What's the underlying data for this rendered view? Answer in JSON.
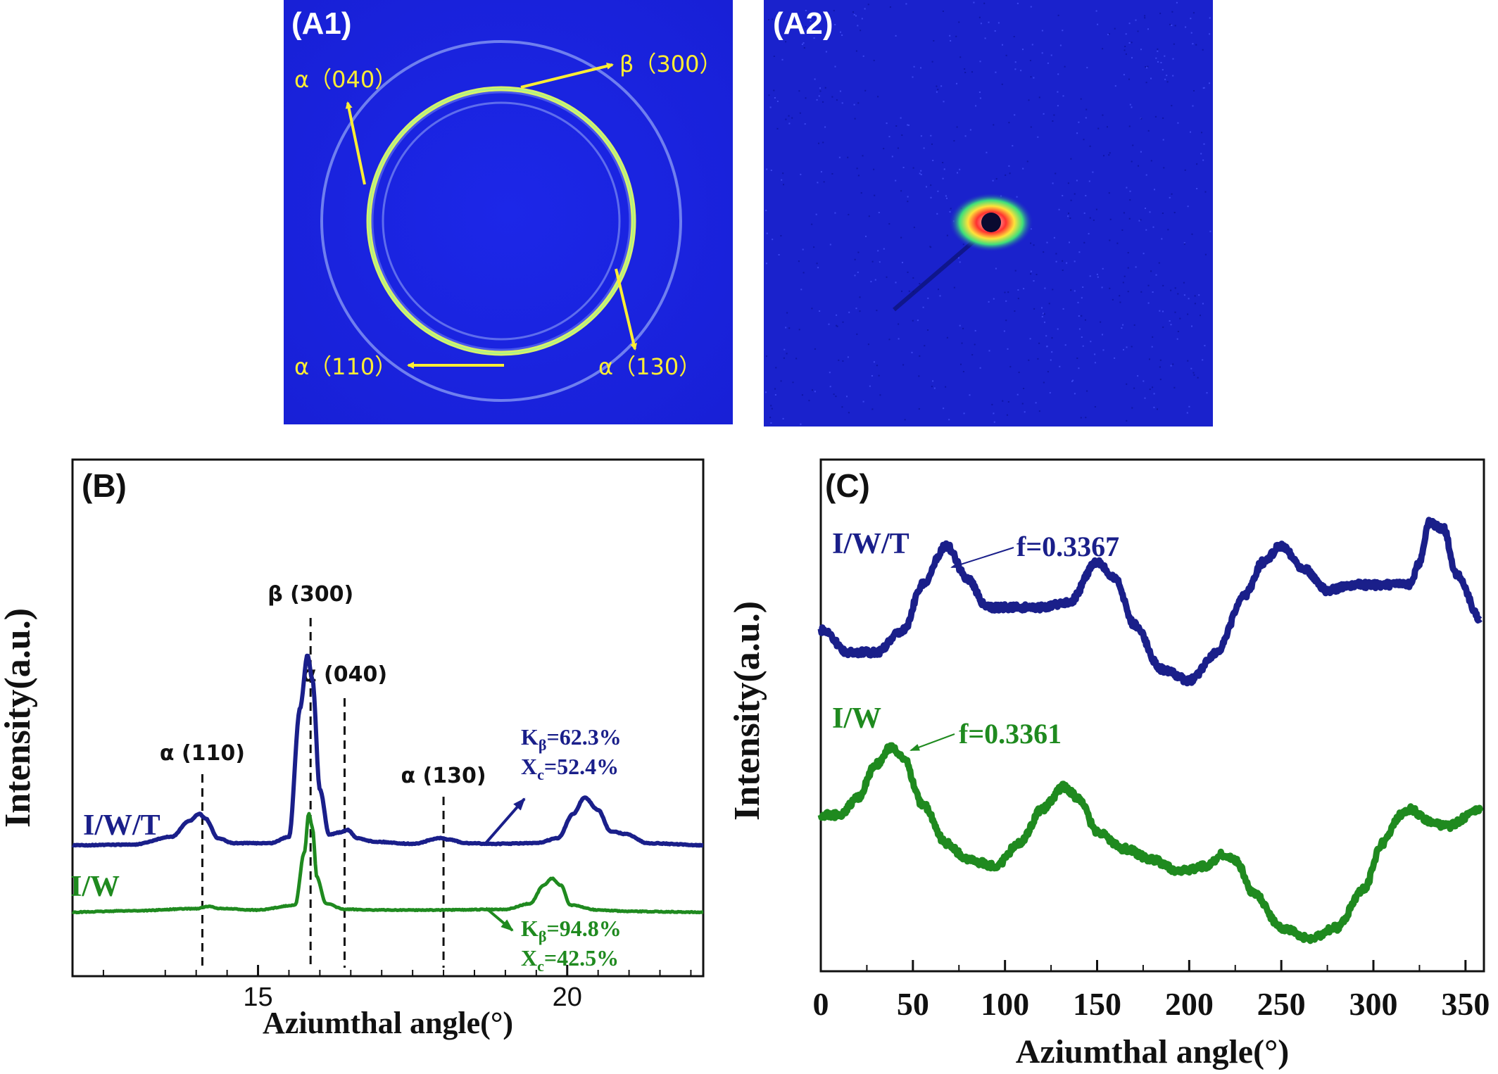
{
  "panels": {
    "a1": {
      "label": "(A1)",
      "annotations": [
        "α（040）",
        "β（300）",
        "α（110）",
        "α（130）"
      ]
    },
    "a2": {
      "label": "(A2)"
    },
    "b": {
      "label": "(B)"
    },
    "c": {
      "label": "(C)"
    }
  },
  "colors": {
    "iwt": "#1a1f8a",
    "iw": "#1f8a1f",
    "pattern_bg": "#1a23e6",
    "annotation": "#ffee33"
  },
  "chart_data": [
    {
      "id": "B",
      "type": "line",
      "xlabel": "Aziumthal angle(°)",
      "ylabel": "Intensity(a.u.)",
      "xlim": [
        12,
        22.2
      ],
      "xticks": [
        15,
        20
      ],
      "xtick_labels": [
        "15",
        "20"
      ],
      "xminor": [
        12.5,
        13.5,
        14,
        14.5,
        15.5,
        16,
        16.5,
        17,
        17.5,
        18,
        18.5,
        19,
        19.5,
        20.5,
        21,
        21.5,
        22
      ],
      "grid": false,
      "legend": "none",
      "series": [
        {
          "name": "I/W/T",
          "x": [
            12,
            13,
            13.6,
            13.9,
            14.05,
            14.15,
            14.35,
            14.6,
            15.2,
            15.5,
            15.68,
            15.8,
            15.88,
            16.0,
            16.15,
            16.3,
            16.45,
            16.6,
            16.9,
            17.5,
            17.95,
            18.1,
            18.35,
            18.8,
            19.5,
            19.85,
            20.1,
            20.28,
            20.5,
            20.7,
            20.95,
            21.3,
            22.2
          ],
          "y": [
            0,
            0.01,
            0.12,
            0.35,
            0.45,
            0.38,
            0.1,
            0.03,
            0.03,
            0.12,
            1.95,
            2.7,
            2.35,
            0.8,
            0.15,
            0.18,
            0.22,
            0.1,
            0.05,
            0.02,
            0.1,
            0.08,
            0.03,
            0.02,
            0.03,
            0.1,
            0.45,
            0.68,
            0.5,
            0.2,
            0.16,
            0.03,
            0
          ]
        },
        {
          "name": "I/W",
          "x": [
            12,
            13,
            14,
            14.2,
            14.4,
            15,
            15.6,
            15.75,
            15.82,
            15.88,
            15.95,
            16.1,
            16.4,
            17,
            18,
            19,
            19.4,
            19.62,
            19.75,
            19.9,
            20.05,
            20.5,
            21,
            22.2
          ],
          "y": [
            0,
            0.02,
            0.05,
            0.08,
            0.05,
            0.03,
            0.1,
            0.85,
            1.4,
            1.2,
            0.5,
            0.12,
            0.04,
            0.03,
            0.03,
            0.04,
            0.12,
            0.38,
            0.48,
            0.38,
            0.1,
            0.03,
            0.01,
            0
          ]
        }
      ],
      "series_labels": [
        "I/W/T",
        "I/W"
      ],
      "peak_markers": [
        {
          "label": "α (110)",
          "x": 14.1
        },
        {
          "label": "β (300)",
          "x": 15.85
        },
        {
          "label": "α (040)",
          "x": 16.4
        },
        {
          "label": "α (130)",
          "x": 18.0
        }
      ],
      "annotations": {
        "iwt": {
          "k_sym": "K",
          "k_sub": "β",
          "k_val": "=62.3%",
          "x_sym": "X",
          "x_sub": "c",
          "x_val": "=52.4%"
        },
        "iw": {
          "k_sym": "K",
          "k_sub": "β",
          "k_val": "=94.8%",
          "x_sym": "X",
          "x_sub": "c",
          "x_val": "=42.5%"
        }
      }
    },
    {
      "id": "C",
      "type": "line",
      "xlabel": "Aziumthal angle(°)",
      "ylabel": "Intensity(a.u.)",
      "xlim": [
        0,
        360
      ],
      "xticks": [
        0,
        50,
        100,
        150,
        200,
        250,
        300,
        350
      ],
      "xtick_labels": [
        "0",
        "50",
        "100",
        "150",
        "200",
        "250",
        "300",
        "350"
      ],
      "xminor": [
        25,
        75,
        125,
        175,
        225,
        275,
        325
      ],
      "grid": false,
      "legend": "none",
      "series": [
        {
          "name": "I/W/T",
          "x": [
            0,
            15,
            30,
            45,
            55,
            68,
            80,
            90,
            105,
            120,
            135,
            150,
            160,
            170,
            185,
            200,
            215,
            230,
            240,
            250,
            262,
            275,
            290,
            305,
            320,
            325,
            330,
            338,
            345,
            358
          ],
          "y": [
            1.5,
            1.3,
            1.3,
            1.5,
            1.9,
            2.25,
            1.95,
            1.7,
            1.7,
            1.7,
            1.75,
            2.1,
            1.95,
            1.55,
            1.15,
            1.05,
            1.3,
            1.8,
            2.1,
            2.25,
            2.05,
            1.85,
            1.9,
            1.9,
            1.9,
            2.1,
            2.45,
            2.4,
            2.0,
            1.6
          ]
        },
        {
          "name": "I/W",
          "x": [
            0,
            10,
            20,
            30,
            38,
            45,
            55,
            68,
            80,
            95,
            108,
            120,
            132,
            140,
            150,
            165,
            180,
            195,
            210,
            218,
            225,
            235,
            250,
            265,
            280,
            295,
            305,
            315,
            320,
            330,
            340,
            358
          ],
          "y": [
            0.45,
            0.45,
            0.6,
            0.9,
            1.05,
            0.95,
            0.55,
            0.2,
            0.05,
            0.0,
            0.2,
            0.5,
            0.7,
            0.6,
            0.3,
            0.15,
            0.05,
            -0.05,
            0.0,
            0.1,
            0.05,
            -0.25,
            -0.55,
            -0.65,
            -0.55,
            -0.2,
            0.2,
            0.45,
            0.5,
            0.4,
            0.35,
            0.5
          ]
        }
      ],
      "series_labels": [
        "I/W/T",
        "I/W"
      ],
      "annotations": [
        {
          "text": "f=0.3367",
          "series": "I/W/T",
          "x": 68
        },
        {
          "text": "f=0.3361",
          "series": "I/W",
          "x": 38
        }
      ]
    }
  ]
}
